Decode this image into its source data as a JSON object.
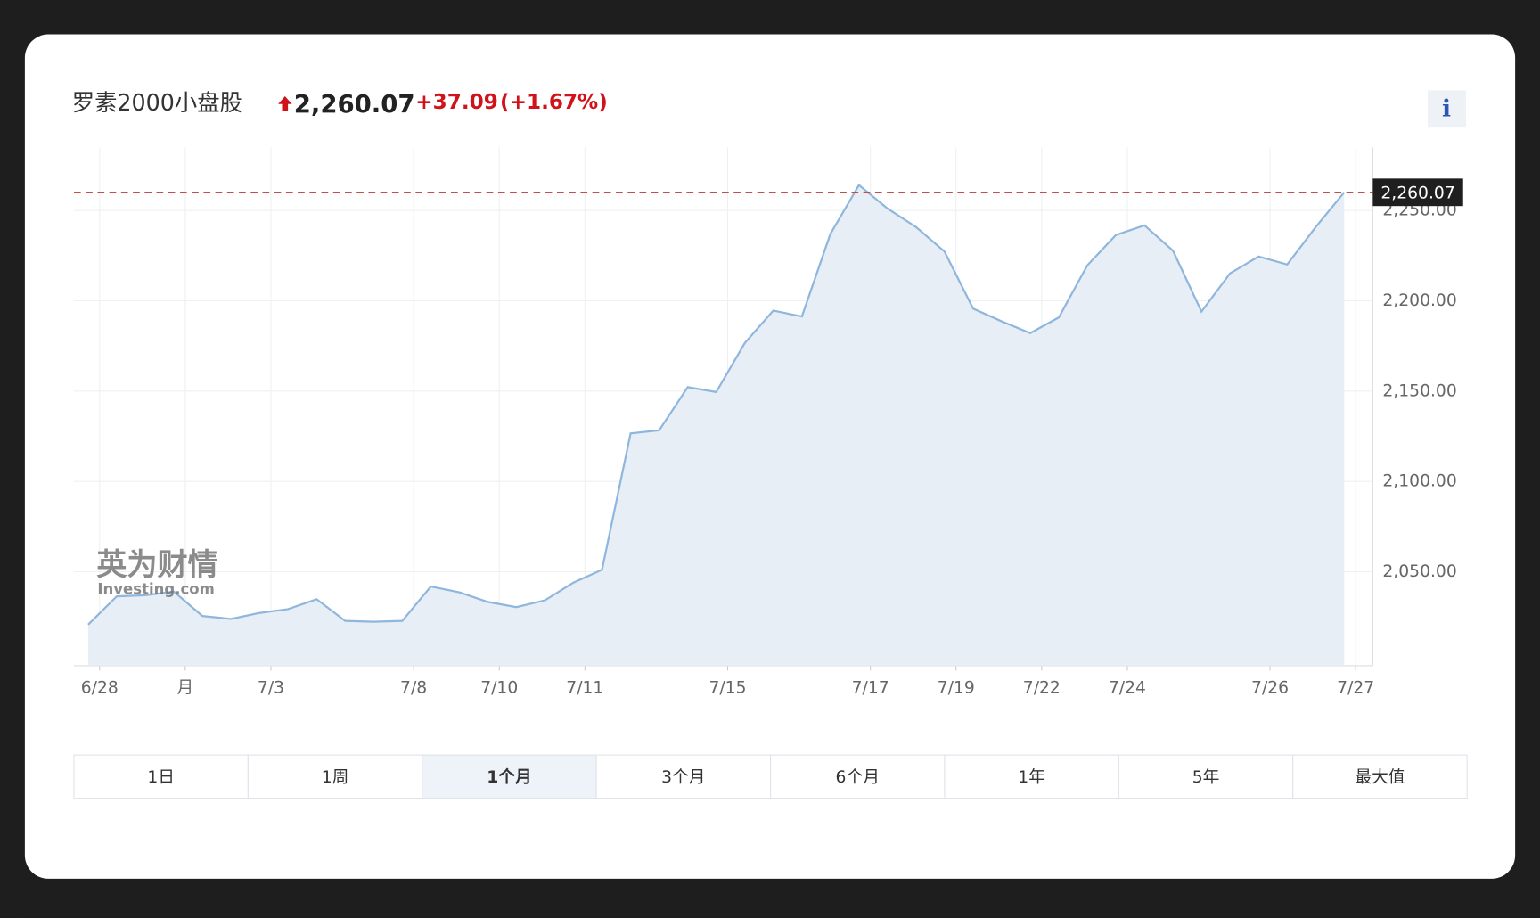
{
  "chart_data": {
    "type": "area",
    "title": "罗素2000小盘股",
    "price": "2,260.07",
    "change": "+37.09",
    "change_pct": "(+1.67%)",
    "x": [
      0,
      1,
      2,
      3,
      4,
      5,
      6,
      7,
      8,
      9,
      10,
      11,
      12,
      13,
      14,
      15,
      16,
      17,
      18,
      19,
      20,
      21,
      22,
      23,
      24,
      25,
      26,
      27,
      28,
      29,
      30,
      31,
      32,
      33,
      34,
      35,
      36,
      37,
      38,
      39,
      40,
      41,
      42,
      43,
      44
    ],
    "values": [
      2020.7,
      2036.4,
      2037,
      2039,
      2025.5,
      2023.9,
      2027.2,
      2029.3,
      2034.8,
      2022.8,
      2022.3,
      2022.8,
      2041.8,
      2038.6,
      2033.3,
      2030.4,
      2034.2,
      2044,
      2051.1,
      2126.6,
      2128.3,
      2152.2,
      2149.5,
      2176.6,
      2194.6,
      2191.3,
      2237,
      2264.1,
      2251.1,
      2240.8,
      2227.2,
      2195.7,
      2188.6,
      2182.1,
      2190.8,
      2219.6,
      2236.4,
      2241.8,
      2227.7,
      2194,
      2215.2,
      2224.5,
      2220.1,
      2240.8,
      2260.07
    ],
    "color": "#8fb6dc",
    "fill": "#e8eef6",
    "xlim": [
      -0.5,
      45
    ],
    "ylim": [
      1998,
      2285
    ],
    "xticks": [
      {
        "value": 0.4,
        "label": "6/28"
      },
      {
        "value": 3.4,
        "label": "月"
      },
      {
        "value": 6.4,
        "label": "7/3"
      },
      {
        "value": 11.4,
        "label": "7/8"
      },
      {
        "value": 14.4,
        "label": "7/10"
      },
      {
        "value": 17.4,
        "label": "7/11"
      },
      {
        "value": 22.4,
        "label": "7/15"
      },
      {
        "value": 27.4,
        "label": "7/17"
      },
      {
        "value": 30.4,
        "label": "7/19"
      },
      {
        "value": 33.4,
        "label": "7/22"
      },
      {
        "value": 36.4,
        "label": "7/24"
      },
      {
        "value": 41.4,
        "label": "7/26"
      },
      {
        "value": 44.4,
        "label": "7/27"
      }
    ],
    "yticks": [
      {
        "value": 2050,
        "label": "2,050.00"
      },
      {
        "value": 2100,
        "label": "2,100.00"
      },
      {
        "value": 2150,
        "label": "2,150.00"
      },
      {
        "value": 2200,
        "label": "2,200.00"
      },
      {
        "value": 2250,
        "label": "2,250.00"
      }
    ],
    "reference_line": {
      "value": 2260.07,
      "label": "2,260.07"
    },
    "grid": true
  },
  "range_tabs": [
    "1日",
    "1周",
    "1个月",
    "3个月",
    "6个月",
    "1年",
    "5年",
    "最大值"
  ],
  "active_tab": 2,
  "watermark": {
    "cn": "英为财情",
    "en": "Investing.com"
  },
  "info_label": "i"
}
